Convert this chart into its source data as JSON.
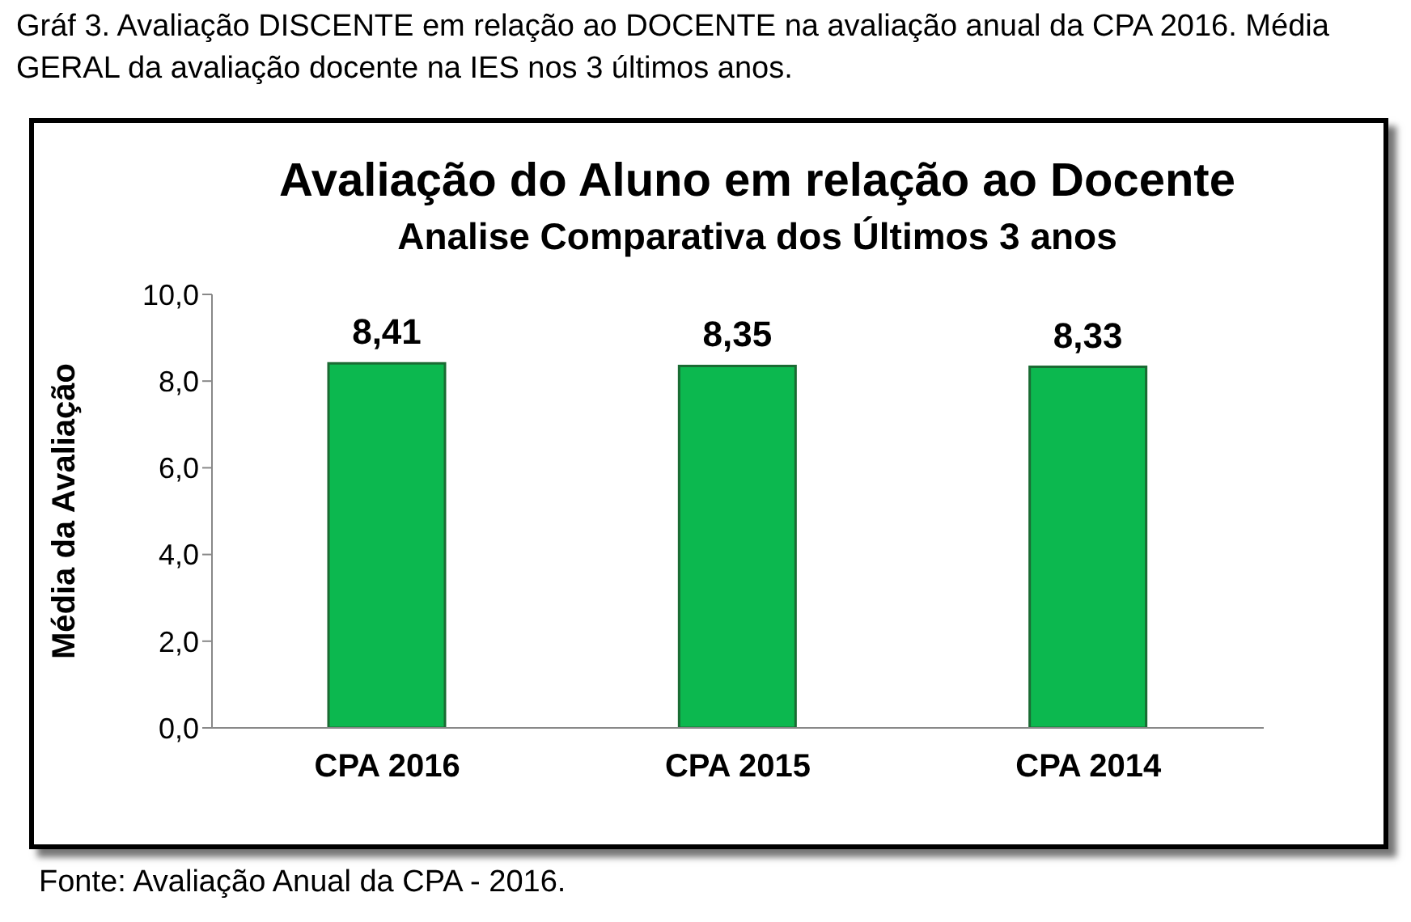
{
  "chart_data": {
    "type": "bar",
    "title": "Avaliação do Aluno em relação ao Docente",
    "subtitle": "Analise Comparativa dos Últimos 3 anos",
    "ylabel": "Média da Avaliação",
    "categories": [
      "CPA 2016",
      "CPA 2015",
      "CPA 2014"
    ],
    "values": [
      8.41,
      8.35,
      8.33
    ],
    "color": "#0cb84f",
    "value_labels": [
      "8,41",
      "8,35",
      "8,33"
    ],
    "ylim": [
      0,
      10
    ],
    "yticks": [
      {
        "value": 0,
        "label": "0,0"
      },
      {
        "value": 2,
        "label": "2,0"
      },
      {
        "value": 4,
        "label": "4,0"
      },
      {
        "value": 6,
        "label": "6,0"
      },
      {
        "value": 8,
        "label": "8,0"
      },
      {
        "value": 10,
        "label": "10,0"
      }
    ],
    "grid": false,
    "legend": false,
    "annotations": [
      "Gráf 3. Avaliação DISCENTE em relação ao DOCENTE na avaliação anual da CPA 2016. Média GERAL da avaliação docente na IES nos 3 últimos anos.",
      "Fonte: Avaliação Anual da CPA - 2016."
    ]
  }
}
